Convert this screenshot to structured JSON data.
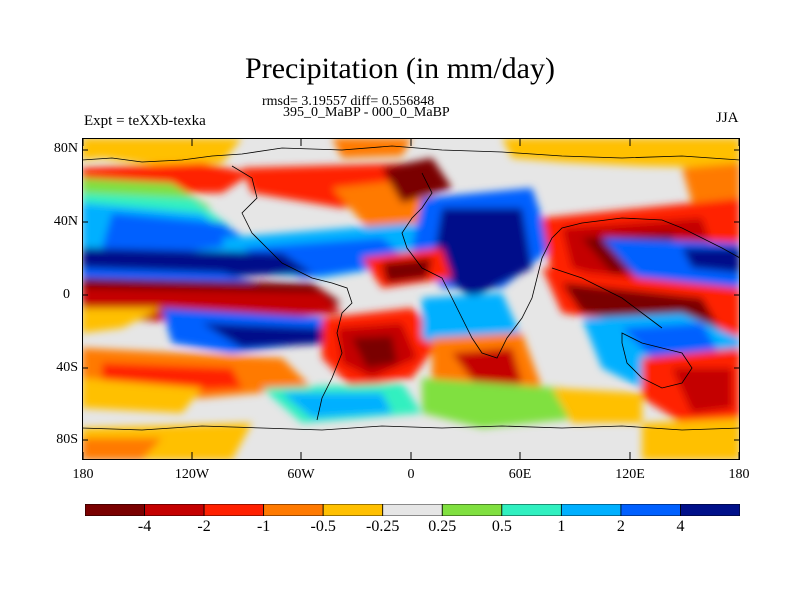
{
  "title": "Precipitation (in mm/day)",
  "stats_line": "rmsd= 3.19557 diff= 0.556848",
  "subtitle": "395_0_MaBP - 000_0_MaBP",
  "left_label": "Expt = teXXb-texka",
  "right_label": "JJA",
  "y_ticks": [
    "80N",
    "40N",
    "0",
    "40S",
    "80S"
  ],
  "x_ticks": [
    "180",
    "120W",
    "60W",
    "0",
    "60E",
    "120E",
    "180"
  ],
  "colorbar": {
    "colors": [
      "#7a0000",
      "#c40000",
      "#ff2000",
      "#ff7a00",
      "#ffc000",
      "#e6e6e6",
      "#80e040",
      "#30f0c0",
      "#00b0ff",
      "#0060ff",
      "#00108a"
    ],
    "labels": [
      "-4",
      "-2",
      "-1",
      "-0.5",
      "-0.25",
      "0.25",
      "0.5",
      "1",
      "2",
      "4"
    ]
  }
}
